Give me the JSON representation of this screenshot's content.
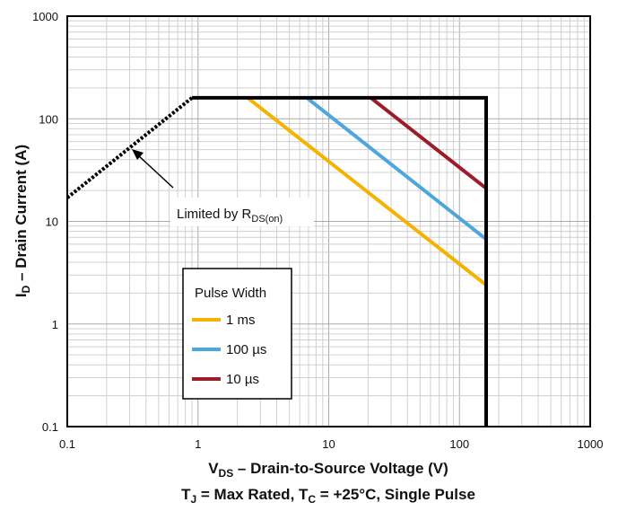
{
  "chart_data": {
    "type": "line",
    "xscale": "log",
    "yscale": "log",
    "xlim": [
      0.1,
      1000
    ],
    "ylim": [
      0.1,
      1000
    ],
    "grid": true,
    "x_ticks": [
      "0.1",
      "1",
      "10",
      "100",
      "1000"
    ],
    "y_ticks": [
      "0.1",
      "1",
      "10",
      "100",
      "1000"
    ],
    "xlabel": {
      "main": "V",
      "sub": "DS",
      "rest": " – Drain-to-Source Voltage (V)"
    },
    "conditions": {
      "t": "T",
      "tsub": "J",
      "mid": " = Max Rated, T",
      "csub": "C",
      "rest": " = +25°C, Single Pulse"
    },
    "ylabel": {
      "main": "I",
      "sub": "D",
      "rest": " – Drain Current (A)"
    },
    "legend": {
      "title": "Pulse Width",
      "position": "lower-left"
    },
    "annotation": {
      "text": "Limited by R",
      "sub": "DS(on)"
    },
    "boundary": {
      "name": "",
      "color": "#000000",
      "points": [
        [
          0.9,
          160
        ],
        [
          160,
          160
        ],
        [
          160,
          0.1
        ]
      ]
    },
    "rds_limit": {
      "color": "#000000",
      "style": "dotted",
      "points": [
        [
          0.1,
          17
        ],
        [
          0.9,
          160
        ]
      ]
    },
    "series": [
      {
        "name": "1 ms",
        "color": "#f5b301",
        "points": [
          [
            2.4,
            160
          ],
          [
            160,
            2.4
          ]
        ]
      },
      {
        "name": "100 µs",
        "color": "#4da6dc",
        "points": [
          [
            6.8,
            160
          ],
          [
            160,
            6.7
          ]
        ]
      },
      {
        "name": "10 µs",
        "color": "#9b1d2a",
        "points": [
          [
            21,
            160
          ],
          [
            160,
            21
          ]
        ]
      }
    ]
  }
}
